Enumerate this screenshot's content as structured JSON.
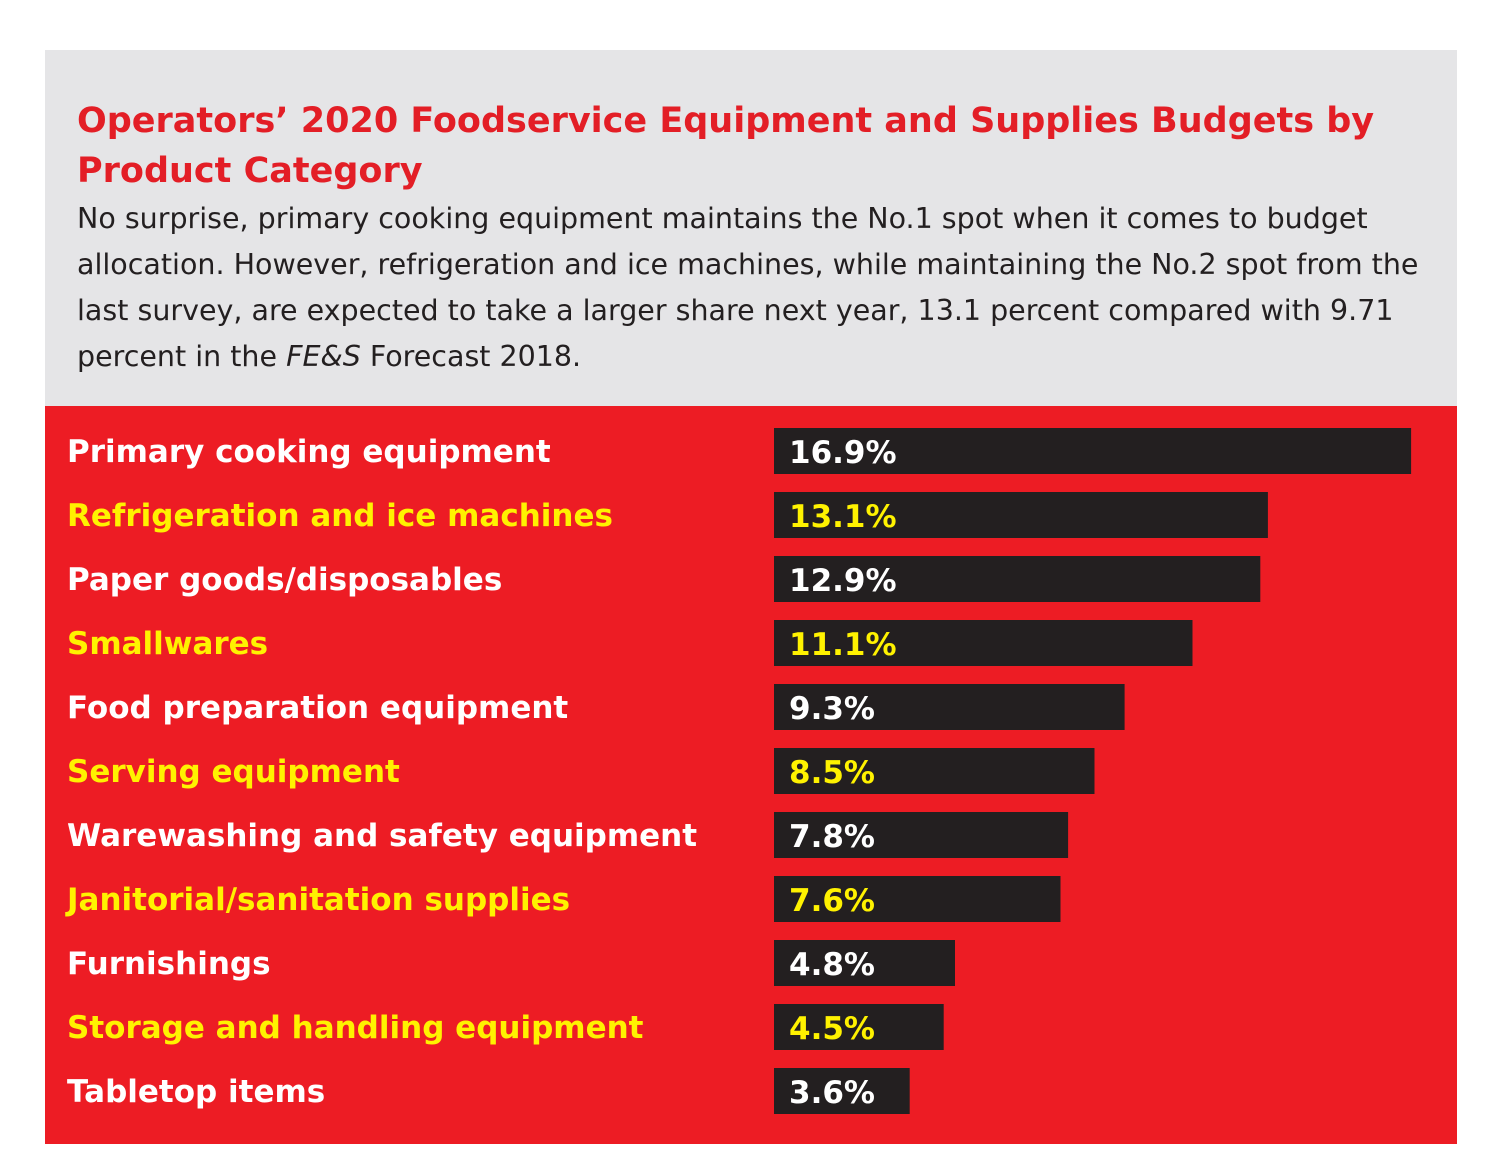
{
  "title": "Operators’ 2020 Foodservice Equipment and Supplies Budgets by Product Category",
  "subtitle": {
    "before": "No surprise, primary cooking equipment maintains the No.1 spot when it comes to budget allocation. However, refrigeration and ice machines, while maintaining the No.2 spot from the last survey, are expected to take a larger share next year, 13.1 percent compared with 9.71 percent in the ",
    "emph": "FE&S",
    "after": " Forecast 2018."
  },
  "colors": {
    "header_bg": "#e5e5e7",
    "title": "#e31e26",
    "chart_bg": "#ed1c24",
    "bar": "#231f20",
    "label_primary": "#ffffff",
    "label_alternate": "#fff200"
  },
  "chart_data": {
    "type": "bar",
    "orientation": "horizontal",
    "categories": [
      "Primary cooking equipment",
      "Refrigeration and ice machines",
      "Paper goods/disposables",
      "Smallwares",
      "Food preparation equipment",
      "Serving equipment",
      "Warewashing and safety equipment",
      "Janitorial/sanitation supplies",
      "Furnishings",
      "Storage and handling equipment",
      "Tabletop items"
    ],
    "values": [
      16.9,
      13.1,
      12.9,
      11.1,
      9.3,
      8.5,
      7.8,
      7.6,
      4.8,
      4.5,
      3.6
    ],
    "value_labels": [
      "16.9%",
      "13.1%",
      "12.9%",
      "11.1%",
      "9.3%",
      "8.5%",
      "7.8%",
      "7.6%",
      "4.8%",
      "4.5%",
      "3.6%"
    ],
    "unit": "%",
    "grid": false,
    "legend": "none"
  }
}
